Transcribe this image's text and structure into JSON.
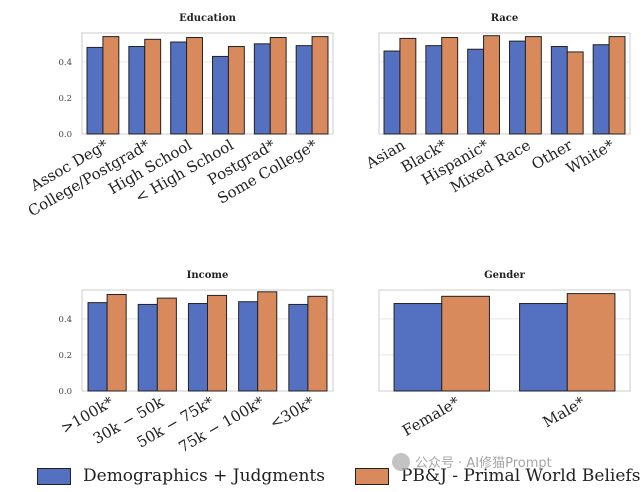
{
  "colors": {
    "series1": "#5470c0",
    "series2": "#d98a5c",
    "edge": "#222222",
    "grid": "#e6e6e6",
    "axis": "#cccccc"
  },
  "legend": {
    "series1_label": "Demographics + Judgments",
    "series2_label": "PB&J - Primal World Beliefs"
  },
  "watermark": {
    "text": "公众号 · AI修猫Prompt"
  },
  "chart_data": [
    {
      "type": "bar",
      "title": "Education",
      "categories": [
        "Assoc Deg*",
        "College/Postgrad*",
        "High School",
        "< High School",
        "Postgrad*",
        "Some College*"
      ],
      "series": [
        {
          "name": "Demographics + Judgments",
          "values": [
            0.48,
            0.485,
            0.51,
            0.43,
            0.5,
            0.49
          ]
        },
        {
          "name": "PB&J - Primal World Beliefs",
          "values": [
            0.54,
            0.525,
            0.535,
            0.485,
            0.535,
            0.54
          ]
        }
      ],
      "ylim": [
        0,
        0.56
      ],
      "yticks": [
        "0.0",
        "0.2",
        "0.4"
      ],
      "ytick_values": [
        0,
        0.2,
        0.4
      ],
      "show_yticks": true
    },
    {
      "type": "bar",
      "title": "Race",
      "categories": [
        "Asian",
        "Black*",
        "Hispanic*",
        "Mixed Race",
        "Other",
        "White*"
      ],
      "series": [
        {
          "name": "Demographics + Judgments",
          "values": [
            0.46,
            0.49,
            0.47,
            0.515,
            0.485,
            0.495
          ]
        },
        {
          "name": "PB&J - Primal World Beliefs",
          "values": [
            0.53,
            0.535,
            0.545,
            0.54,
            0.455,
            0.54
          ]
        }
      ],
      "ylim": [
        0,
        0.56
      ],
      "yticks": [],
      "ytick_values": [
        0,
        0.2,
        0.4
      ],
      "show_yticks": false
    },
    {
      "type": "bar",
      "title": "Income",
      "categories": [
        ">100k*",
        "30k − 50k",
        "50k − 75k*",
        "75k − 100k*",
        "<30k*"
      ],
      "series": [
        {
          "name": "Demographics + Judgments",
          "values": [
            0.49,
            0.48,
            0.485,
            0.495,
            0.48
          ]
        },
        {
          "name": "PB&J - Primal World Beliefs",
          "values": [
            0.535,
            0.515,
            0.53,
            0.55,
            0.525
          ]
        }
      ],
      "ylim": [
        0,
        0.56
      ],
      "yticks": [
        "0.0",
        "0.2",
        "0.4"
      ],
      "ytick_values": [
        0,
        0.2,
        0.4
      ],
      "show_yticks": true
    },
    {
      "type": "bar",
      "title": "Gender",
      "categories": [
        "Female*",
        "Male*"
      ],
      "series": [
        {
          "name": "Demographics + Judgments",
          "values": [
            0.485,
            0.485
          ]
        },
        {
          "name": "PB&J - Primal World Beliefs",
          "values": [
            0.525,
            0.54
          ]
        }
      ],
      "ylim": [
        0,
        0.56
      ],
      "yticks": [],
      "ytick_values": [
        0,
        0.2,
        0.4
      ],
      "show_yticks": false
    }
  ]
}
